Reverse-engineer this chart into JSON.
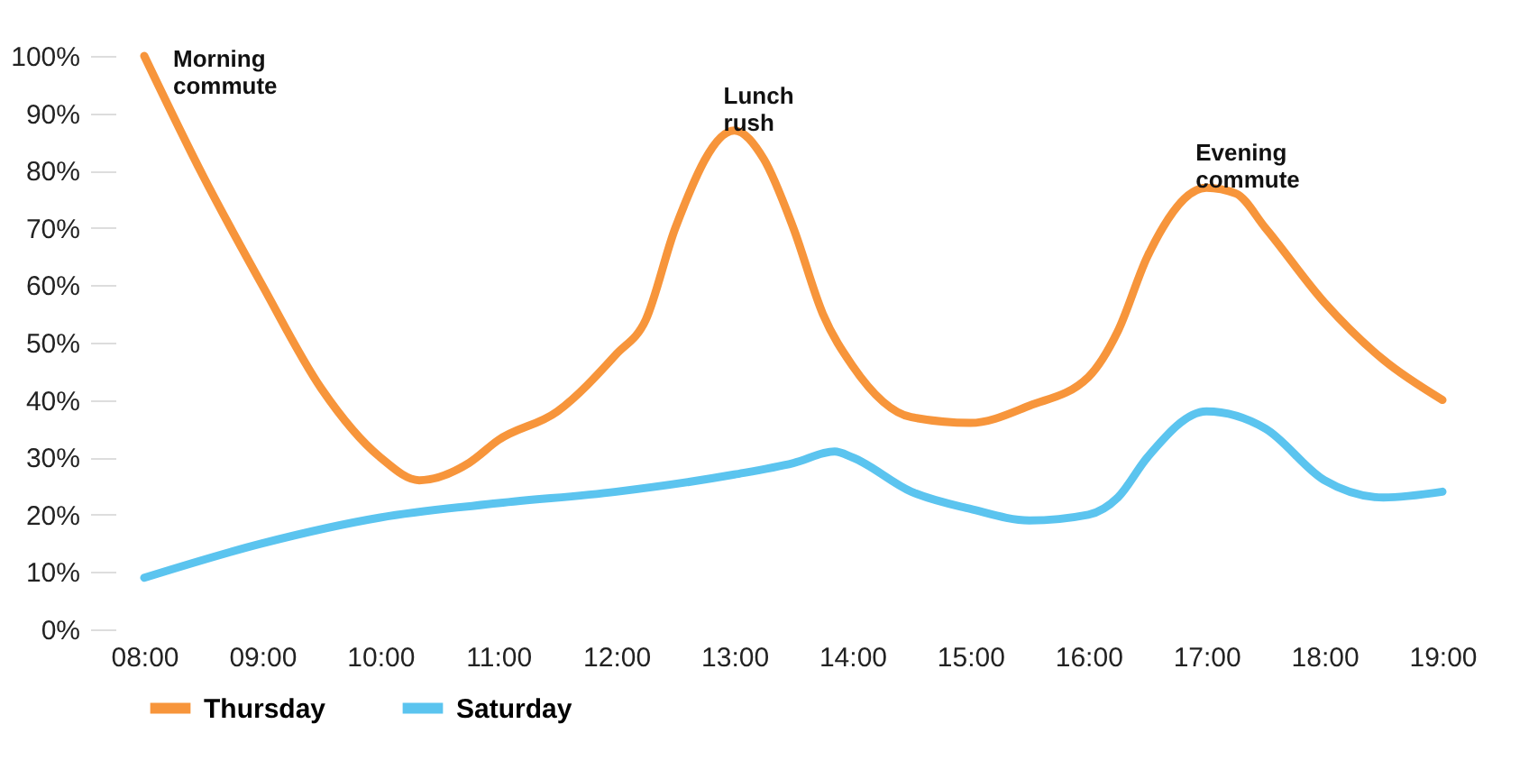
{
  "chart_data": {
    "type": "line",
    "xlim": [
      8,
      19
    ],
    "ylim": [
      0,
      100
    ],
    "xticks": [
      {
        "value": 8,
        "label": "08:00"
      },
      {
        "value": 9,
        "label": "09:00"
      },
      {
        "value": 10,
        "label": "10:00"
      },
      {
        "value": 11,
        "label": "11:00"
      },
      {
        "value": 12,
        "label": "12:00"
      },
      {
        "value": 13,
        "label": "13:00"
      },
      {
        "value": 14,
        "label": "14:00"
      },
      {
        "value": 15,
        "label": "15:00"
      },
      {
        "value": 16,
        "label": "16:00"
      },
      {
        "value": 17,
        "label": "17:00"
      },
      {
        "value": 18,
        "label": "18:00"
      },
      {
        "value": 19,
        "label": "19:00"
      }
    ],
    "yticks": [
      {
        "value": 0,
        "label": "0%"
      },
      {
        "value": 10,
        "label": "10%"
      },
      {
        "value": 20,
        "label": "20%"
      },
      {
        "value": 30,
        "label": "30%"
      },
      {
        "value": 40,
        "label": "40%"
      },
      {
        "value": 50,
        "label": "50%"
      },
      {
        "value": 60,
        "label": "60%"
      },
      {
        "value": 70,
        "label": "70%"
      },
      {
        "value": 80,
        "label": "80%"
      },
      {
        "value": 90,
        "label": "90%"
      },
      {
        "value": 100,
        "label": "100%"
      }
    ],
    "grid": false,
    "legend": "bottom",
    "marker": "none",
    "line_style": "solid",
    "series": [
      {
        "name": "Thursday",
        "color": "#f7953b",
        "x": [
          8,
          8.5,
          9,
          9.5,
          10,
          10.33,
          10.75,
          11,
          11.5,
          12,
          12.25,
          12.5,
          13,
          13.25,
          13.5,
          13.75,
          14,
          14.5,
          15,
          15.5,
          16,
          16.25,
          16.5,
          17,
          17.25,
          17.5,
          18,
          18.5,
          19
        ],
        "values": [
          100,
          79,
          60,
          42,
          30,
          26,
          29,
          33,
          38,
          48,
          54,
          70,
          87,
          82,
          70,
          55,
          46,
          37,
          36,
          39,
          44,
          52,
          65,
          77,
          76,
          70,
          57,
          47,
          40
        ]
      },
      {
        "name": "Saturday",
        "color": "#5bc4ef",
        "x": [
          8,
          9,
          10,
          11,
          12,
          13,
          13.5,
          13.85,
          14,
          14.5,
          15,
          15.5,
          16,
          16.25,
          16.5,
          17,
          17.5,
          18,
          18.5,
          19
        ],
        "values": [
          9,
          15,
          19.5,
          22,
          24,
          27,
          29,
          31,
          30,
          24,
          21,
          19,
          20,
          23,
          30,
          38,
          35,
          26,
          23,
          24
        ]
      }
    ],
    "annotations": [
      {
        "text": "Morning commute",
        "x": 8,
        "y": 100
      },
      {
        "text": "Lunch rush",
        "x": 13,
        "y": 87
      },
      {
        "text": "Evening commute",
        "x": 17,
        "y": 77
      }
    ]
  }
}
